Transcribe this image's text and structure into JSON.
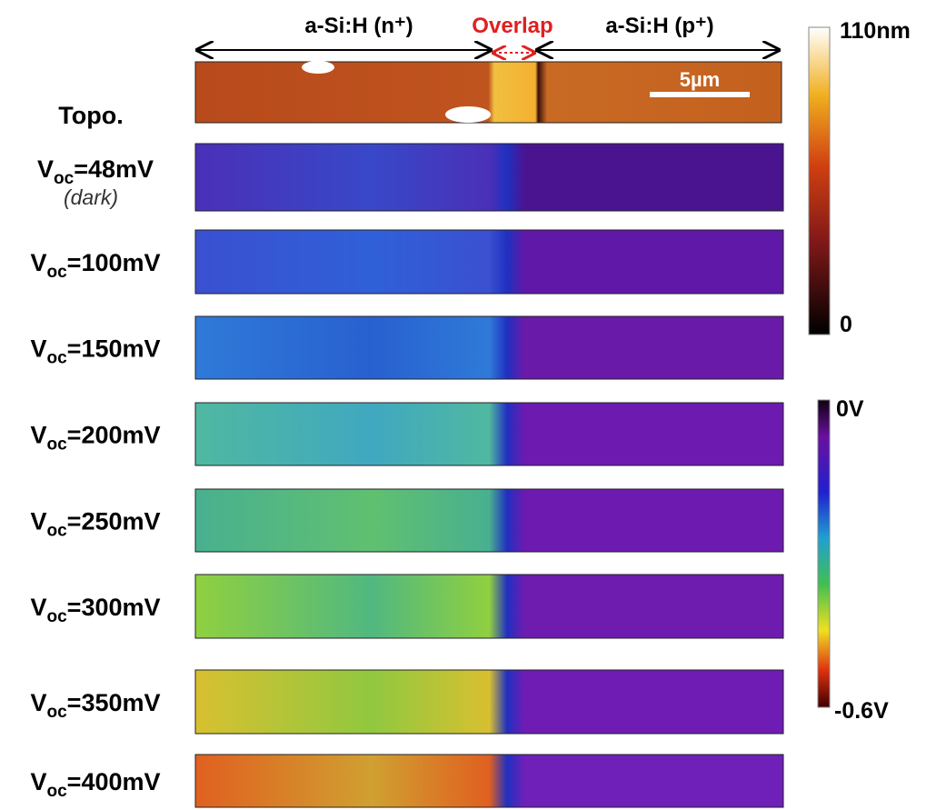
{
  "header": {
    "n_region": "a-Si:H (n⁺)",
    "overlap": "Overlap",
    "p_region": "a-Si:H (p⁺)"
  },
  "topo": {
    "label": "Topo.",
    "scale_bar": "5µm"
  },
  "rows": [
    {
      "main": "V",
      "sub": "oc",
      "rest": "=48mV",
      "note": "(dark)"
    },
    {
      "main": "V",
      "sub": "oc",
      "rest": "=100mV"
    },
    {
      "main": "V",
      "sub": "oc",
      "rest": "=150mV"
    },
    {
      "main": "V",
      "sub": "oc",
      "rest": "=200mV"
    },
    {
      "main": "V",
      "sub": "oc",
      "rest": "=250mV"
    },
    {
      "main": "V",
      "sub": "oc",
      "rest": "=300mV"
    },
    {
      "main": "V",
      "sub": "oc",
      "rest": "=350mV"
    },
    {
      "main": "V",
      "sub": "oc",
      "rest": "=400mV"
    }
  ],
  "colorbars": {
    "topo_max": "110nm",
    "topo_min": "0",
    "kpfm_max": "0V",
    "kpfm_min": "-0.6V"
  }
}
